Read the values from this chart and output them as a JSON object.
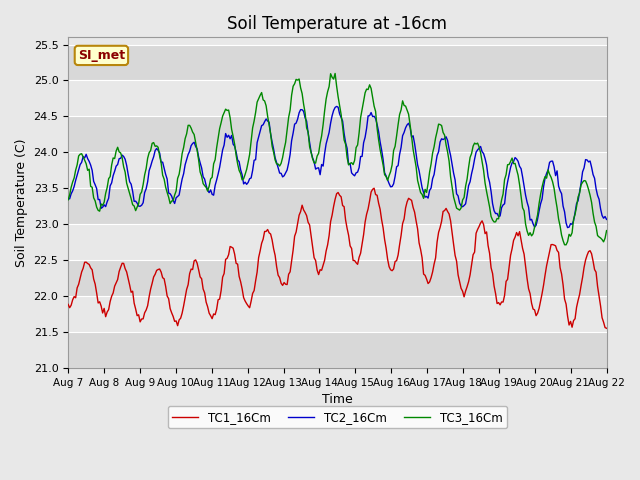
{
  "title": "Soil Temperature at -16cm",
  "xlabel": "Time",
  "ylabel": "Soil Temperature (C)",
  "ylim": [
    21.0,
    25.6
  ],
  "yticks": [
    21.0,
    21.5,
    22.0,
    22.5,
    23.0,
    23.5,
    24.0,
    24.5,
    25.0,
    25.5
  ],
  "x_labels": [
    "Aug 7",
    "Aug 8",
    "Aug 9",
    "Aug 10",
    "Aug 11",
    "Aug 12",
    "Aug 13",
    "Aug 14",
    "Aug 15",
    "Aug 16",
    "Aug 17",
    "Aug 18",
    "Aug 19",
    "Aug 20",
    "Aug 21",
    "Aug 22"
  ],
  "color_tc1": "#cc0000",
  "color_tc2": "#0000cc",
  "color_tc3": "#008800",
  "legend_label_tc1": "TC1_16Cm",
  "legend_label_tc2": "TC2_16Cm",
  "legend_label_tc3": "TC3_16Cm",
  "annotation_text": "SI_met",
  "annotation_color": "#8b0000",
  "annotation_bg": "#ffffcc",
  "annotation_border": "#b8860b",
  "fig_bg_color": "#e8e8e8",
  "plot_bg_color": "#e8e8e8",
  "grid_color": "#ffffff",
  "title_fontsize": 12,
  "axis_fontsize": 9,
  "tick_fontsize": 8
}
